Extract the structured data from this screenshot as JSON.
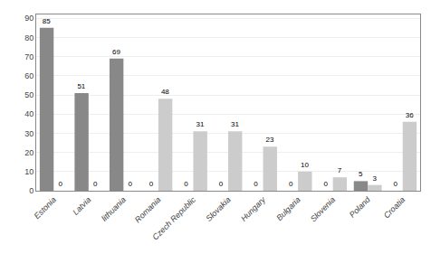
{
  "chart_data": {
    "type": "bar",
    "categories": [
      "Estonia",
      "Latvia",
      "lithuania",
      "Romania",
      "Czech Republic",
      "Slovakia",
      "Hungary",
      "Bulgaria",
      "Slovenia",
      "Poland",
      "Croatia"
    ],
    "series": [
      {
        "color": "#888888",
        "values": [
          85,
          51,
          69,
          0,
          0,
          0,
          0,
          0,
          0,
          5,
          0
        ]
      },
      {
        "color": "#cccccc",
        "values": [
          0,
          0,
          0,
          48,
          31,
          31,
          23,
          10,
          7,
          3,
          36
        ]
      }
    ],
    "ylim": [
      0,
      92
    ],
    "yticks": [
      0,
      10,
      20,
      30,
      40,
      50,
      60,
      70,
      80,
      90
    ],
    "grid": true,
    "data_labels": true
  }
}
